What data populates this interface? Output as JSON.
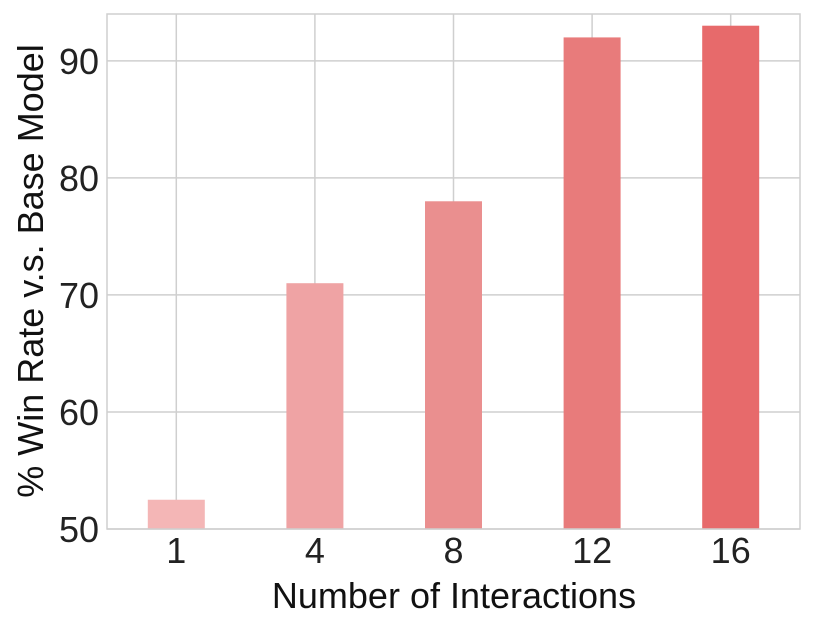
{
  "chart_data": {
    "type": "bar",
    "title": "",
    "xlabel": "Number of Interactions",
    "ylabel": "% Win Rate v.s. Base Model",
    "categories": [
      "1",
      "4",
      "8",
      "12",
      "16"
    ],
    "values": [
      52.5,
      71,
      78,
      92,
      93
    ],
    "colors": [
      "#f4b6b6",
      "#efa3a4",
      "#ea8f8f",
      "#e87b7b",
      "#e76a6b"
    ],
    "ylim": [
      50,
      94
    ],
    "yticks": [
      50,
      60,
      70,
      80,
      90
    ],
    "grid": true,
    "legend": "none"
  }
}
